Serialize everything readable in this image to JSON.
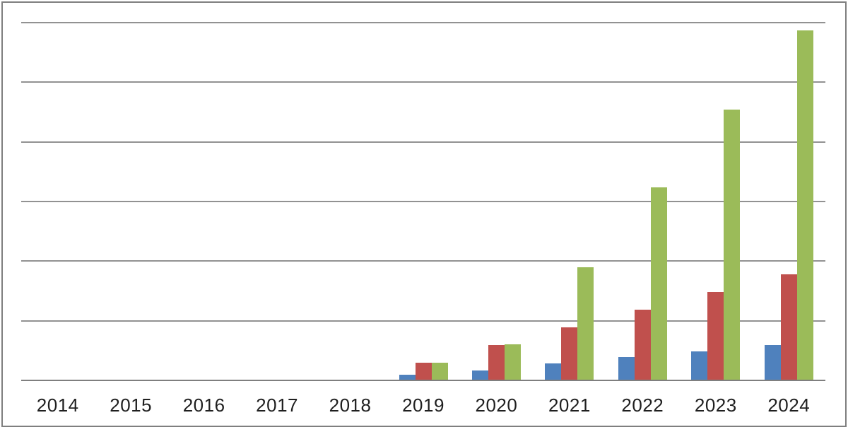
{
  "colors": {
    "background": "#ffffff",
    "frame_border": "#7f7f7f",
    "gridline": "#929292",
    "axis_line": "#7f7f7f",
    "label_text": "#1f1f1f",
    "series_blue": "#4f81bd",
    "series_red": "#c0504d",
    "series_green": "#9bbb59"
  },
  "chart_data": {
    "type": "bar",
    "title": "",
    "xlabel": "",
    "ylabel": "",
    "legend": "none",
    "y_axis_tick_labels": "none (unlabeled gridlines)",
    "grid": "horizontal gridlines on, 6 equal intervals",
    "ylim": [
      0,
      6
    ],
    "value_unit": "gridline-intervals (y axis shows no numeric labels)",
    "categories": [
      "2014",
      "2015",
      "2016",
      "2017",
      "2018",
      "2019",
      "2020",
      "2021",
      "2022",
      "2023",
      "2024"
    ],
    "series": [
      {
        "name": "series-1",
        "color": "#4f81bd",
        "values": [
          0,
          0,
          0,
          0,
          0,
          0.08,
          0.15,
          0.27,
          0.38,
          0.47,
          0.58
        ]
      },
      {
        "name": "series-2",
        "color": "#c0504d",
        "values": [
          0,
          0,
          0,
          0,
          0,
          0.28,
          0.58,
          0.88,
          1.17,
          1.47,
          1.77
        ]
      },
      {
        "name": "series-3",
        "color": "#9bbb59",
        "values": [
          0,
          0,
          0,
          0,
          0,
          0.28,
          0.59,
          1.89,
          3.23,
          4.53,
          5.86
        ]
      }
    ]
  }
}
